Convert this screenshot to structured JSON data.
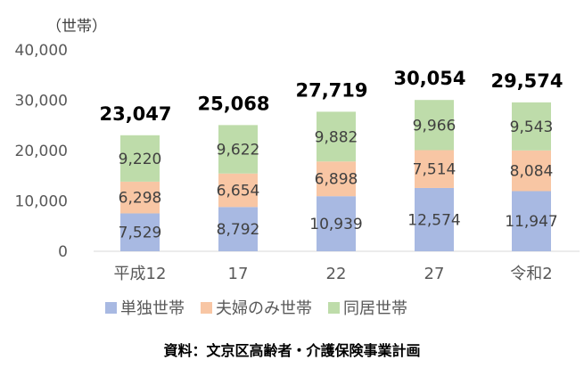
{
  "chart_data": {
    "type": "bar",
    "stacked": true,
    "unit_label": "（世帯）",
    "categories": [
      "平成12",
      "17",
      "22",
      "27",
      "令和2"
    ],
    "series": [
      {
        "name": "単独世帯",
        "color": "#a8b9e2",
        "values": [
          7529,
          8792,
          10939,
          12574,
          11947
        ],
        "labels": [
          "7,529",
          "8,792",
          "10,939",
          "12,574",
          "11,947"
        ]
      },
      {
        "name": "夫婦のみ世帯",
        "color": "#f8c6a4",
        "values": [
          6298,
          6654,
          6898,
          7514,
          8084
        ],
        "labels": [
          "6,298",
          "6,654",
          "6,898",
          "7,514",
          "8,084"
        ]
      },
      {
        "name": "同居世帯",
        "color": "#bedcaa",
        "values": [
          9220,
          9622,
          9882,
          9966,
          9543
        ],
        "labels": [
          "9,220",
          "9,622",
          "9,882",
          "9,966",
          "9,543"
        ]
      }
    ],
    "totals": [
      23047,
      25068,
      27719,
      30054,
      29574
    ],
    "total_labels": [
      "23,047",
      "25,068",
      "27,719",
      "30,054",
      "29,574"
    ],
    "ylim": [
      0,
      40000
    ],
    "yticks": [
      0,
      10000,
      20000,
      30000,
      40000
    ],
    "ytick_labels": [
      "0",
      "10,000",
      "20,000",
      "30,000",
      "40,000"
    ],
    "legend_position": "bottom",
    "grid": false
  },
  "source": "資料：文京区高齢者・介護保険事業計画"
}
